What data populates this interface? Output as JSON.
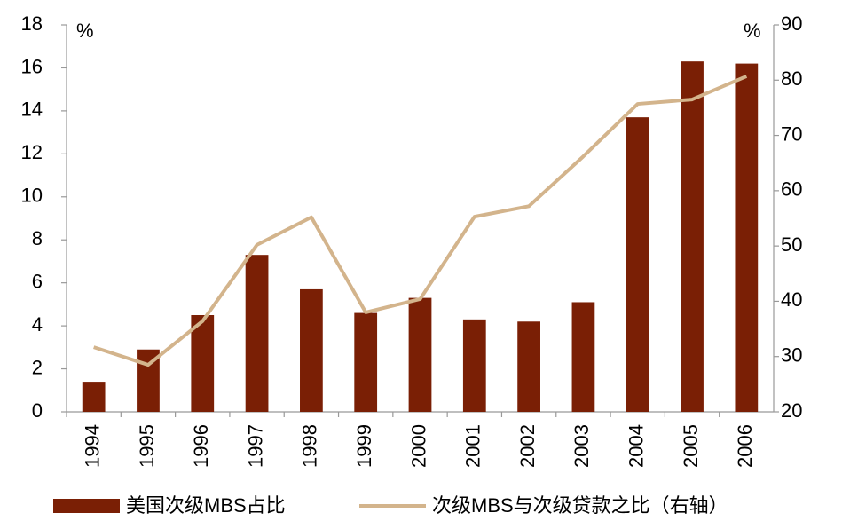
{
  "chart_data": {
    "type": "bar-line",
    "y_label": "%",
    "y2_label": "%",
    "categories": [
      "1994",
      "1995",
      "1996",
      "1997",
      "1998",
      "1999",
      "2000",
      "2001",
      "2002",
      "2003",
      "2004",
      "2005",
      "2006"
    ],
    "series": [
      {
        "name": "美国次级MBS占比",
        "type": "bar",
        "color": "#7a1f05",
        "values": [
          1.4,
          2.9,
          4.5,
          7.3,
          5.7,
          4.6,
          5.3,
          4.3,
          4.2,
          5.1,
          13.7,
          16.3,
          16.2
        ]
      },
      {
        "name": "次级MBS与次级贷款之比（右轴）",
        "type": "line",
        "axis": "y2",
        "color": "#d3b48c",
        "values": [
          31.7,
          28.5,
          36.4,
          50.2,
          55.2,
          38.0,
          40.4,
          55.3,
          57.2,
          66.2,
          75.7,
          76.5,
          80.7
        ]
      }
    ],
    "ylim": [
      0,
      18
    ],
    "yticks": [
      0,
      2,
      4,
      6,
      8,
      10,
      12,
      14,
      16,
      18
    ],
    "y2lim": [
      20,
      90
    ],
    "y2ticks": [
      20,
      30,
      40,
      50,
      60,
      70,
      80,
      90
    ],
    "legend": "bottom"
  }
}
